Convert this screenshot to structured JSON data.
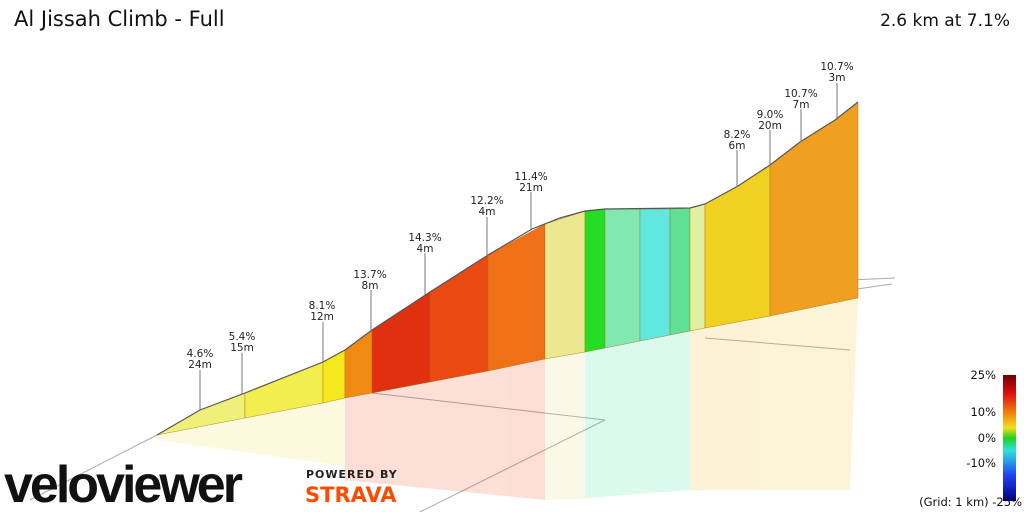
{
  "header": {
    "title": "Al Jissah Climb - Full",
    "summary": "2.6 km at 7.1%"
  },
  "annotations": [
    {
      "grade": "4.6%",
      "length": "24m"
    },
    {
      "grade": "5.4%",
      "length": "15m"
    },
    {
      "grade": "8.1%",
      "length": "12m"
    },
    {
      "grade": "13.7%",
      "length": "8m"
    },
    {
      "grade": "14.3%",
      "length": "4m"
    },
    {
      "grade": "12.2%",
      "length": "4m"
    },
    {
      "grade": "11.4%",
      "length": "21m"
    },
    {
      "grade": "8.2%",
      "length": "6m"
    },
    {
      "grade": "9.0%",
      "length": "20m"
    },
    {
      "grade": "10.7%",
      "length": "7m"
    },
    {
      "grade": "10.7%",
      "length": "3m"
    }
  ],
  "legend": {
    "labels": [
      "25%",
      "10%",
      "0%",
      "-10%",
      "(Grid: 1 km) -25%"
    ]
  },
  "branding": {
    "logo": "veloviewer",
    "powered": "POWERED BY",
    "partner": "STRAVA"
  }
}
